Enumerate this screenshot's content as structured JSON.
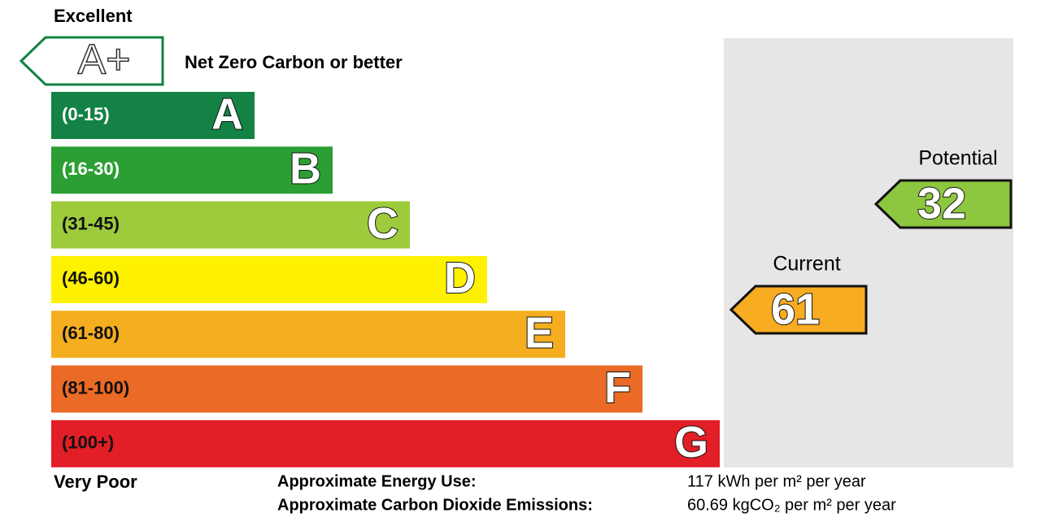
{
  "header": {
    "top_label": "Excellent",
    "bottom_label": "Very Poor"
  },
  "aplus": {
    "letter": "A+",
    "label": "Net Zero Carbon or better"
  },
  "bands": [
    {
      "range": "(0-15)",
      "letter": "A",
      "color": "#138244"
    },
    {
      "range": "(16-30)",
      "letter": "B",
      "color": "#2c9f34"
    },
    {
      "range": "(31-45)",
      "letter": "C",
      "color": "#9dcb3c"
    },
    {
      "range": "(46-60)",
      "letter": "D",
      "color": "#fff200"
    },
    {
      "range": "(61-80)",
      "letter": "E",
      "color": "#f5ae20"
    },
    {
      "range": "(81-100)",
      "letter": "F",
      "color": "#eb6a25"
    },
    {
      "range": "(100+)",
      "letter": "G",
      "color": "#e21e26"
    }
  ],
  "ratings": {
    "potential": {
      "label": "Potential",
      "value": 32,
      "color": "#8dc63f"
    },
    "current": {
      "label": "Current",
      "value": 61,
      "color": "#f7ac21"
    }
  },
  "footer": {
    "energy_label": "Approximate Energy Use:",
    "energy_value": "117 kWh per m² per year",
    "emissions_label": "Approximate Carbon Dioxide Emissions:",
    "emissions_value": "60.69 kgCO₂ per m² per year"
  }
}
